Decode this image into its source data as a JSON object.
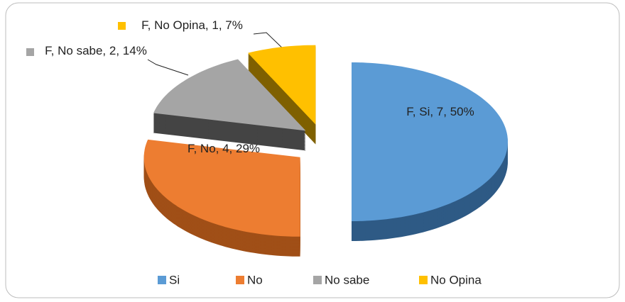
{
  "chart_data": {
    "type": "pie",
    "categories": [
      "Si",
      "No",
      "No sabe",
      "No Opina"
    ],
    "values": [
      7,
      4,
      2,
      1
    ],
    "value_labels": [
      "F, Si, 7, 50%",
      "F, No, 4, 29%",
      "F, No sabe, 2, 14%",
      "F, No Opina, 1, 7%"
    ],
    "colors": [
      "#5b9bd5",
      "#ed7d31",
      "#a5a5a5",
      "#ffc000"
    ],
    "legend": "bottom"
  }
}
